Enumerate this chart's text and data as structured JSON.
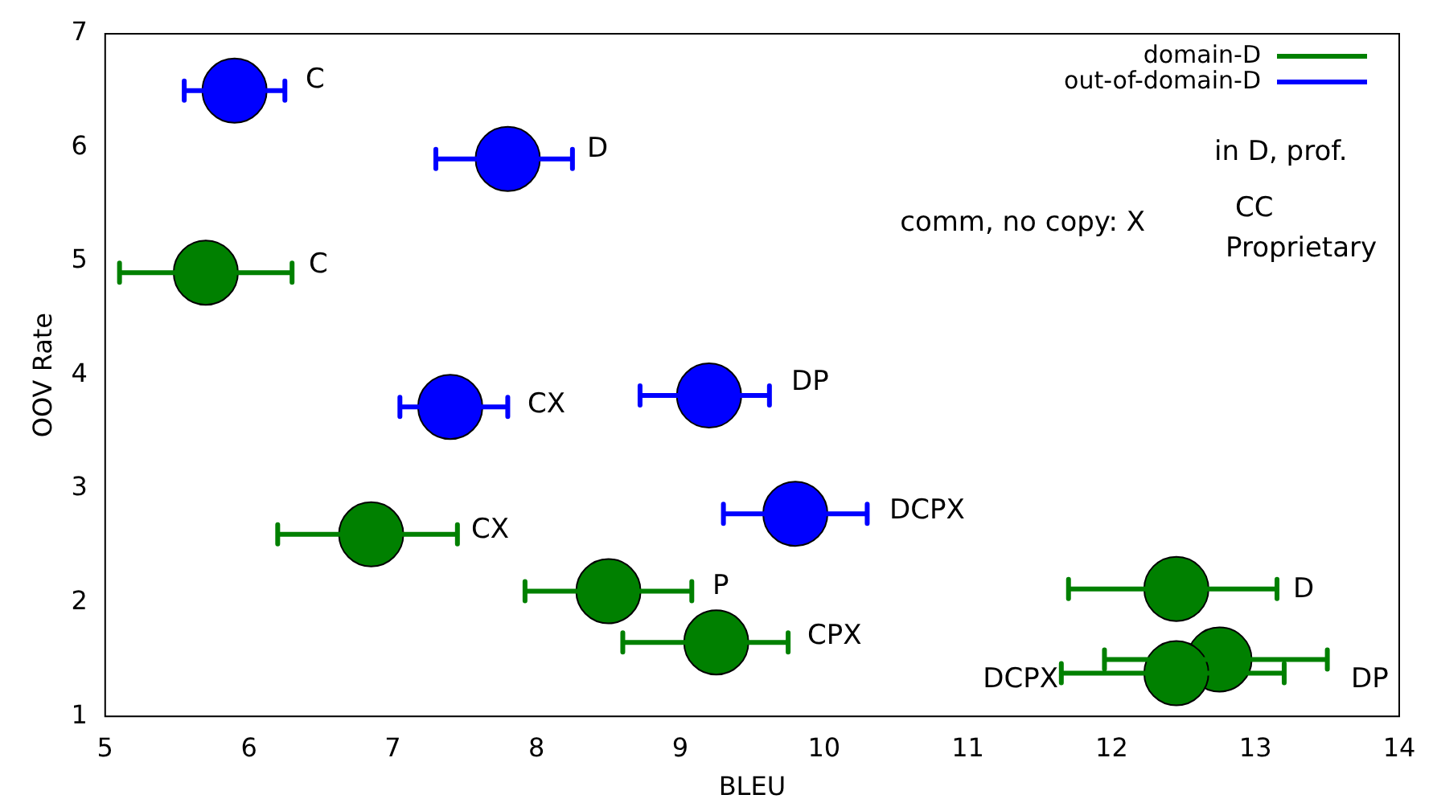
{
  "chart_data": {
    "type": "scatter",
    "xlabel": "BLEU",
    "ylabel": "OOV Rate",
    "xlim": [
      5,
      14
    ],
    "xticks": [
      5,
      6,
      7,
      8,
      9,
      10,
      11,
      12,
      13,
      14
    ],
    "ylim": [
      1,
      7
    ],
    "yticks": [
      1,
      2,
      3,
      4,
      5,
      6,
      7
    ],
    "grid": false,
    "legend": "top right",
    "marker": "circle",
    "series": [
      {
        "name": "domain-D",
        "color": "#008000",
        "x": [
          5.7,
          6.85,
          8.5,
          9.25,
          12.45,
          12.75,
          12.45
        ],
        "values": [
          4.9,
          2.6,
          2.1,
          1.65,
          2.12,
          1.5,
          1.38
        ],
        "xerrors": [
          [
            5.1,
            6.3
          ],
          [
            6.2,
            7.45
          ],
          [
            7.92,
            9.08
          ],
          [
            8.6,
            9.75
          ],
          [
            11.7,
            13.15
          ],
          [
            11.95,
            13.5
          ],
          [
            11.65,
            13.2
          ]
        ]
      },
      {
        "name": "out-of-domain-D",
        "color": "#0000ff",
        "x": [
          5.9,
          7.8,
          7.4,
          9.2,
          9.8
        ],
        "values": [
          6.5,
          5.9,
          3.72,
          3.82,
          2.78
        ],
        "xerrors": [
          [
            5.55,
            6.25
          ],
          [
            7.3,
            8.25
          ],
          [
            7.05,
            7.8
          ],
          [
            8.72,
            9.62
          ],
          [
            9.3,
            10.3
          ]
        ]
      }
    ],
    "annotations": [
      "C",
      "D",
      "C",
      "CX",
      "DP",
      "CX",
      "DCPX",
      "P",
      "CPX",
      "D",
      "DP",
      "DCPX",
      "in D, prof.",
      "CC",
      "comm, no copy: X",
      "Proprietary"
    ]
  }
}
